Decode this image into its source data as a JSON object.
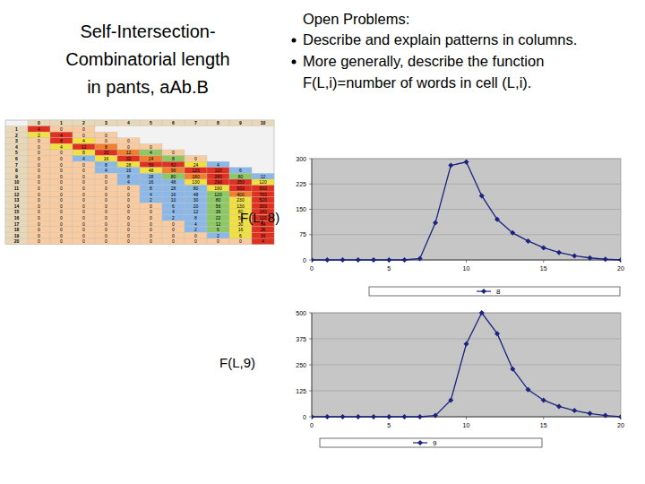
{
  "slide": {
    "title_lines": [
      "Self-Intersection-",
      "Combinatorial length",
      "in pants, aAb.B"
    ],
    "problems_heading": "Open Problems:",
    "problems": [
      [
        "Describe and explain patterns in columns."
      ],
      [
        "More generally, describe the function",
        "F(L,i)=number of words in cell (L,i)."
      ]
    ]
  },
  "table": {
    "columns": [
      0,
      1,
      2,
      3,
      4,
      5,
      6,
      7,
      8,
      9,
      10
    ],
    "rows": [
      {
        "L": 1,
        "cells": [
          4,
          0,
          0,
          null,
          null,
          null,
          null,
          null,
          null,
          null,
          null
        ]
      },
      {
        "L": 2,
        "cells": [
          2,
          4,
          0,
          0,
          null,
          null,
          null,
          null,
          null,
          null,
          null
        ]
      },
      {
        "L": 3,
        "cells": [
          0,
          8,
          4,
          0,
          0,
          null,
          null,
          null,
          null,
          null,
          null
        ]
      },
      {
        "L": 4,
        "cells": [
          0,
          4,
          12,
          8,
          0,
          0,
          null,
          null,
          null,
          null,
          null
        ]
      },
      {
        "L": 5,
        "cells": [
          0,
          0,
          8,
          20,
          12,
          4,
          0,
          null,
          null,
          null,
          null
        ]
      },
      {
        "L": 6,
        "cells": [
          0,
          0,
          4,
          16,
          32,
          24,
          8,
          0,
          null,
          null,
          null
        ]
      },
      {
        "L": 7,
        "cells": [
          0,
          0,
          0,
          8,
          28,
          56,
          52,
          24,
          4,
          null,
          null
        ]
      },
      {
        "L": 8,
        "cells": [
          0,
          0,
          0,
          4,
          16,
          48,
          96,
          120,
          110,
          6,
          null
        ]
      },
      {
        "L": 9,
        "cells": [
          0,
          0,
          0,
          0,
          8,
          28,
          80,
          180,
          280,
          80,
          12
        ]
      },
      {
        "L": 10,
        "cells": [
          0,
          0,
          0,
          0,
          4,
          16,
          48,
          130,
          290,
          350,
          120
        ]
      },
      {
        "L": 11,
        "cells": [
          0,
          0,
          0,
          0,
          0,
          8,
          28,
          80,
          190,
          500,
          600
        ]
      },
      {
        "L": 12,
        "cells": [
          0,
          0,
          0,
          0,
          0,
          4,
          16,
          48,
          120,
          400,
          760
        ]
      },
      {
        "L": 13,
        "cells": [
          0,
          0,
          0,
          0,
          0,
          2,
          10,
          30,
          80,
          230,
          520
        ]
      },
      {
        "L": 14,
        "cells": [
          0,
          0,
          0,
          0,
          0,
          0,
          6,
          20,
          56,
          130,
          300
        ]
      },
      {
        "L": 15,
        "cells": [
          0,
          0,
          0,
          0,
          0,
          0,
          4,
          12,
          36,
          80,
          180
        ]
      },
      {
        "L": 16,
        "cells": [
          0,
          0,
          0,
          0,
          0,
          0,
          2,
          8,
          22,
          50,
          110
        ]
      },
      {
        "L": 17,
        "cells": [
          0,
          0,
          0,
          0,
          0,
          0,
          0,
          4,
          12,
          30,
          64
        ]
      },
      {
        "L": 18,
        "cells": [
          0,
          0,
          0,
          0,
          0,
          0,
          0,
          2,
          6,
          16,
          36
        ]
      },
      {
        "L": 19,
        "cells": [
          0,
          0,
          0,
          0,
          0,
          0,
          0,
          0,
          2,
          6,
          16
        ]
      },
      {
        "L": 20,
        "cells": [
          0,
          0,
          0,
          0,
          0,
          0,
          0,
          0,
          0,
          0,
          4
        ]
      }
    ]
  },
  "chart_data": [
    {
      "type": "line",
      "title": "F(L, 8)",
      "x": [
        0,
        1,
        2,
        3,
        4,
        5,
        6,
        7,
        8,
        9,
        10,
        11,
        12,
        13,
        14,
        15,
        16,
        17,
        18,
        19,
        20
      ],
      "series": [
        {
          "name": "8",
          "color": "#1a237e",
          "marker": "diamond",
          "line_style": "solid",
          "values": [
            0,
            0,
            0,
            0,
            0,
            0,
            0,
            4,
            110,
            280,
            290,
            190,
            120,
            80,
            56,
            36,
            22,
            12,
            6,
            2,
            0
          ]
        }
      ],
      "xlim": [
        0,
        20
      ],
      "xticks": [
        0,
        5,
        10,
        15,
        20
      ],
      "ylim": [
        0,
        300
      ],
      "yticks": [
        0,
        75,
        150,
        225,
        300
      ],
      "grid": true,
      "legend": "bottom"
    },
    {
      "type": "line",
      "title": "F(L,9)",
      "x": [
        0,
        1,
        2,
        3,
        4,
        5,
        6,
        7,
        8,
        9,
        10,
        11,
        12,
        13,
        14,
        15,
        16,
        17,
        18,
        19,
        20
      ],
      "series": [
        {
          "name": "9",
          "color": "#1a237e",
          "marker": "diamond",
          "line_style": "solid",
          "values": [
            0,
            0,
            0,
            0,
            0,
            0,
            0,
            0,
            6,
            80,
            350,
            500,
            400,
            230,
            130,
            80,
            50,
            30,
            16,
            6,
            0
          ]
        }
      ],
      "xlim": [
        0,
        20
      ],
      "xticks": [
        0,
        5,
        10,
        15,
        20
      ],
      "ylim": [
        0,
        500
      ],
      "yticks": [
        0,
        125,
        250,
        375,
        500
      ],
      "grid": true,
      "legend": "bottom"
    }
  ]
}
